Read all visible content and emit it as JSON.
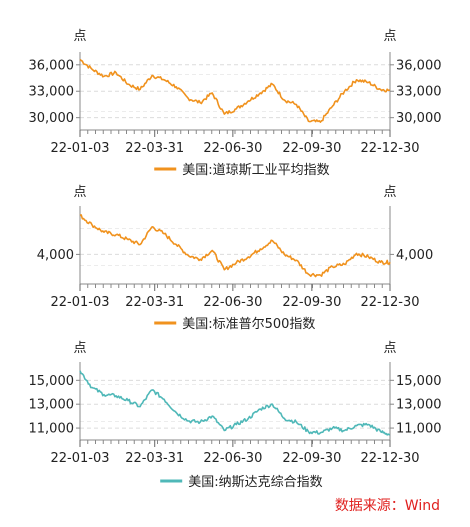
{
  "source_note": "数据来源：Wind",
  "chart_data": [
    {
      "type": "line",
      "unit_left": "点",
      "unit_right": "点",
      "color": "#f0921e",
      "legend": "美国:道琼斯工业平均指数",
      "x_ticks": [
        "22-01-03",
        "22-03-31",
        "22-06-30",
        "22-09-30",
        "22-12-30"
      ],
      "y_ticks": [
        "36,000",
        "33,000",
        "30,000"
      ],
      "y_tick_values": [
        36000,
        33000,
        30000
      ],
      "ylim": [
        28600,
        37000
      ],
      "x": [
        "22-01-03",
        "22-01-17",
        "22-01-31",
        "22-02-14",
        "22-02-28",
        "22-03-14",
        "22-03-28",
        "22-04-11",
        "22-04-25",
        "22-05-09",
        "22-05-23",
        "22-06-06",
        "22-06-20",
        "22-07-04",
        "22-07-18",
        "22-08-01",
        "22-08-15",
        "22-08-29",
        "22-09-12",
        "22-09-26",
        "22-10-10",
        "22-10-24",
        "22-11-07",
        "22-11-21",
        "22-12-05",
        "22-12-19",
        "22-12-30"
      ],
      "values": [
        36600,
        35500,
        34700,
        35100,
        33800,
        33200,
        34800,
        34300,
        33500,
        32200,
        31700,
        32800,
        30400,
        31000,
        31900,
        32800,
        33800,
        32000,
        31500,
        29600,
        29500,
        31300,
        33000,
        34300,
        34000,
        33200,
        33100
      ],
      "grid": true
    },
    {
      "type": "line",
      "unit_left": "点",
      "unit_right": "点",
      "color": "#f0921e",
      "legend": "美国:标准普尔500指数",
      "x_ticks": [
        "22-01-03",
        "22-03-31",
        "22-06-30",
        "22-09-30",
        "22-12-30"
      ],
      "y_ticks": [
        "4,000"
      ],
      "y_tick_values": [
        4000
      ],
      "ylim": [
        3400,
        4900
      ],
      "x": [
        "22-01-03",
        "22-01-17",
        "22-01-31",
        "22-02-14",
        "22-02-28",
        "22-03-14",
        "22-03-28",
        "22-04-11",
        "22-04-25",
        "22-05-09",
        "22-05-23",
        "22-06-06",
        "22-06-20",
        "22-07-04",
        "22-07-18",
        "22-08-01",
        "22-08-15",
        "22-08-29",
        "22-09-12",
        "22-09-26",
        "22-10-10",
        "22-10-24",
        "22-11-07",
        "22-11-21",
        "22-12-05",
        "22-12-19",
        "22-12-30"
      ],
      "values": [
        4790,
        4600,
        4450,
        4400,
        4300,
        4200,
        4560,
        4420,
        4200,
        3980,
        3900,
        4080,
        3690,
        3830,
        3950,
        4110,
        4280,
        4000,
        3880,
        3600,
        3580,
        3750,
        3800,
        4020,
        3950,
        3840,
        3840
      ],
      "grid": true
    },
    {
      "type": "line",
      "unit_left": "点",
      "unit_right": "点",
      "color": "#4fb8b8",
      "legend": "美国:纳斯达克综合指数",
      "x_ticks": [
        "22-01-03",
        "22-03-31",
        "22-06-30",
        "22-09-30",
        "22-12-30"
      ],
      "y_ticks": [
        "15,000",
        "13,000",
        "11,000"
      ],
      "y_tick_values": [
        15000,
        13000,
        11000
      ],
      "ylim": [
        10000,
        16200
      ],
      "x": [
        "22-01-03",
        "22-01-17",
        "22-01-31",
        "22-02-14",
        "22-02-28",
        "22-03-14",
        "22-03-28",
        "22-04-11",
        "22-04-25",
        "22-05-09",
        "22-05-23",
        "22-06-06",
        "22-06-20",
        "22-07-04",
        "22-07-18",
        "22-08-01",
        "22-08-15",
        "22-08-29",
        "22-09-12",
        "22-09-26",
        "22-10-10",
        "22-10-24",
        "22-11-07",
        "22-11-21",
        "22-12-05",
        "22-12-19",
        "22-12-30"
      ],
      "values": [
        15800,
        14400,
        13800,
        13700,
        13300,
        12800,
        14200,
        13400,
        12300,
        11600,
        11500,
        12000,
        10800,
        11300,
        11800,
        12600,
        13000,
        11800,
        11500,
        10700,
        10600,
        11000,
        10800,
        11200,
        11300,
        10700,
        10450
      ],
      "grid": true
    }
  ]
}
